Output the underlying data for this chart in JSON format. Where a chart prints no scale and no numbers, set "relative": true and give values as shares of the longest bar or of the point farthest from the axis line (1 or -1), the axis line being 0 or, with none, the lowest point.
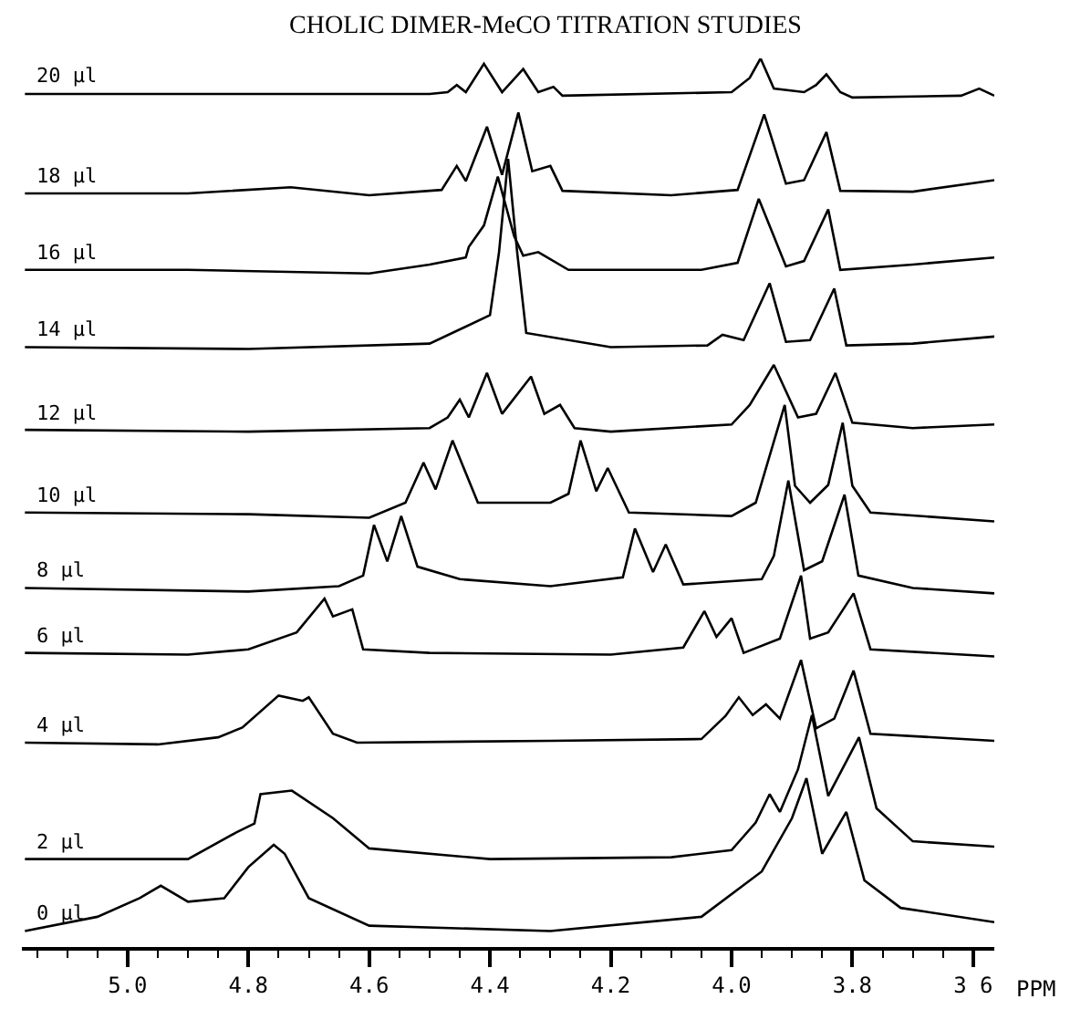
{
  "chart_data": {
    "type": "line",
    "title": "CHOLIC DIMER-MeCO TITRATION STUDIES",
    "xlabel": "PPM",
    "relative": true,
    "legend": false,
    "marker": "none",
    "line_style": "solid",
    "tick_labels": "x",
    "xlim": [
      5.175,
      3.565
    ],
    "xticks": [
      {
        "value": 5.15,
        "label": null
      },
      {
        "value": 5.1,
        "label": null
      },
      {
        "value": 5.05,
        "label": null
      },
      {
        "value": 5.0,
        "label": "5.0"
      },
      {
        "value": 4.95,
        "label": null
      },
      {
        "value": 4.9,
        "label": null
      },
      {
        "value": 4.85,
        "label": null
      },
      {
        "value": 4.8,
        "label": "4.8"
      },
      {
        "value": 4.75,
        "label": null
      },
      {
        "value": 4.7,
        "label": null
      },
      {
        "value": 4.65,
        "label": null
      },
      {
        "value": 4.6,
        "label": "4.6"
      },
      {
        "value": 4.55,
        "label": null
      },
      {
        "value": 4.5,
        "label": null
      },
      {
        "value": 4.45,
        "label": null
      },
      {
        "value": 4.4,
        "label": "4.4"
      },
      {
        "value": 4.35,
        "label": null
      },
      {
        "value": 4.3,
        "label": null
      },
      {
        "value": 4.25,
        "label": null
      },
      {
        "value": 4.2,
        "label": "4.2"
      },
      {
        "value": 4.15,
        "label": null
      },
      {
        "value": 4.1,
        "label": null
      },
      {
        "value": 4.05,
        "label": null
      },
      {
        "value": 4.0,
        "label": "4.0"
      },
      {
        "value": 3.95,
        "label": null
      },
      {
        "value": 3.9,
        "label": null
      },
      {
        "value": 3.85,
        "label": null
      },
      {
        "value": 3.8,
        "label": "3.8"
      },
      {
        "value": 3.75,
        "label": null
      },
      {
        "value": 3.7,
        "label": null
      },
      {
        "value": 3.65,
        "label": null
      },
      {
        "value": 3.6,
        "label": "3 6"
      }
    ],
    "series": [
      {
        "name": "20 µl",
        "color": "#000000",
        "x": [
          5.17,
          4.5,
          4.47,
          4.455,
          4.44,
          4.41,
          4.38,
          4.345,
          4.32,
          4.295,
          4.28,
          4.0,
          3.97,
          3.952,
          3.93,
          3.88,
          3.86,
          3.843,
          3.82,
          3.8,
          3.62,
          3.59,
          3.565
        ],
        "values": [
          0.96,
          0.96,
          0.962,
          0.97,
          0.962,
          0.994,
          0.962,
          0.988,
          0.962,
          0.968,
          0.958,
          0.962,
          0.978,
          1.0,
          0.966,
          0.962,
          0.97,
          0.982,
          0.962,
          0.956,
          0.958,
          0.966,
          0.958
        ]
      },
      {
        "name": "18 µl",
        "color": "#000000",
        "x": [
          5.17,
          4.9,
          4.73,
          4.6,
          4.48,
          4.455,
          4.44,
          4.405,
          4.38,
          4.353,
          4.33,
          4.3,
          4.28,
          4.1,
          3.99,
          3.946,
          3.91,
          3.88,
          3.843,
          3.82,
          3.7,
          3.565
        ],
        "values": [
          0.848,
          0.848,
          0.855,
          0.846,
          0.852,
          0.879,
          0.862,
          0.923,
          0.869,
          0.939,
          0.873,
          0.879,
          0.851,
          0.846,
          0.852,
          0.937,
          0.859,
          0.863,
          0.917,
          0.851,
          0.85,
          0.863
        ]
      },
      {
        "name": "16 µl",
        "color": "#000000",
        "x": [
          5.17,
          4.9,
          4.6,
          4.5,
          4.44,
          4.435,
          4.41,
          4.387,
          4.36,
          4.345,
          4.32,
          4.27,
          4.05,
          3.99,
          3.955,
          3.91,
          3.88,
          3.84,
          3.82,
          3.7,
          3.565
        ],
        "values": [
          0.762,
          0.762,
          0.758,
          0.768,
          0.776,
          0.788,
          0.812,
          0.867,
          0.8,
          0.778,
          0.782,
          0.762,
          0.762,
          0.77,
          0.842,
          0.766,
          0.772,
          0.83,
          0.762,
          0.768,
          0.776
        ]
      },
      {
        "name": "14 µl",
        "color": "#000000",
        "x": [
          5.17,
          4.8,
          4.5,
          4.4,
          4.385,
          4.37,
          4.355,
          4.34,
          4.2,
          4.04,
          4.015,
          3.98,
          3.937,
          3.91,
          3.87,
          3.83,
          3.81,
          3.7,
          3.565
        ],
        "values": [
          0.675,
          0.673,
          0.679,
          0.711,
          0.782,
          0.887,
          0.782,
          0.691,
          0.675,
          0.677,
          0.689,
          0.683,
          0.747,
          0.681,
          0.683,
          0.741,
          0.677,
          0.679,
          0.687
        ]
      },
      {
        "name": "12 µl",
        "color": "#000000",
        "x": [
          5.17,
          4.8,
          4.5,
          4.47,
          4.45,
          4.435,
          4.405,
          4.38,
          4.332,
          4.31,
          4.284,
          4.26,
          4.2,
          4.0,
          3.97,
          3.93,
          3.89,
          3.86,
          3.828,
          3.8,
          3.7,
          3.565
        ],
        "values": [
          0.582,
          0.58,
          0.584,
          0.596,
          0.616,
          0.596,
          0.646,
          0.6,
          0.642,
          0.6,
          0.61,
          0.584,
          0.58,
          0.588,
          0.61,
          0.655,
          0.596,
          0.6,
          0.646,
          0.59,
          0.584,
          0.588
        ]
      },
      {
        "name": "10 µl",
        "color": "#000000",
        "x": [
          5.17,
          4.8,
          4.6,
          4.54,
          4.51,
          4.49,
          4.462,
          4.42,
          4.3,
          4.27,
          4.25,
          4.224,
          4.205,
          4.17,
          4.0,
          3.96,
          3.912,
          3.895,
          3.87,
          3.84,
          3.816,
          3.8,
          3.77,
          3.565
        ],
        "values": [
          0.489,
          0.487,
          0.483,
          0.5,
          0.545,
          0.515,
          0.57,
          0.5,
          0.5,
          0.51,
          0.57,
          0.513,
          0.539,
          0.489,
          0.485,
          0.5,
          0.61,
          0.519,
          0.5,
          0.52,
          0.59,
          0.519,
          0.489,
          0.479
        ]
      },
      {
        "name": "8 µl",
        "color": "#000000",
        "x": [
          5.17,
          4.8,
          4.65,
          4.61,
          4.592,
          4.57,
          4.547,
          4.52,
          4.45,
          4.3,
          4.18,
          4.16,
          4.13,
          4.109,
          4.08,
          3.95,
          3.93,
          3.906,
          3.88,
          3.85,
          3.813,
          3.79,
          3.7,
          3.565
        ],
        "values": [
          0.404,
          0.4,
          0.406,
          0.418,
          0.475,
          0.434,
          0.485,
          0.428,
          0.414,
          0.406,
          0.416,
          0.471,
          0.422,
          0.453,
          0.408,
          0.414,
          0.44,
          0.525,
          0.424,
          0.434,
          0.509,
          0.418,
          0.404,
          0.398
        ]
      },
      {
        "name": "6 µl",
        "color": "#000000",
        "x": [
          5.17,
          4.9,
          4.8,
          4.72,
          4.674,
          4.66,
          4.628,
          4.61,
          4.5,
          4.2,
          4.08,
          4.045,
          4.025,
          4.0,
          3.98,
          3.92,
          3.885,
          3.87,
          3.84,
          3.798,
          3.77,
          3.565
        ],
        "values": [
          0.331,
          0.329,
          0.335,
          0.354,
          0.392,
          0.372,
          0.38,
          0.335,
          0.331,
          0.329,
          0.337,
          0.378,
          0.349,
          0.37,
          0.331,
          0.347,
          0.418,
          0.347,
          0.354,
          0.398,
          0.335,
          0.327
        ]
      },
      {
        "name": "4 µl",
        "color": "#000000",
        "x": [
          5.17,
          4.95,
          4.85,
          4.81,
          4.75,
          4.71,
          4.7,
          4.66,
          4.62,
          4.3,
          4.05,
          4.01,
          3.988,
          3.965,
          3.943,
          3.92,
          3.885,
          3.86,
          3.83,
          3.798,
          3.77,
          3.565
        ],
        "values": [
          0.23,
          0.228,
          0.236,
          0.247,
          0.283,
          0.277,
          0.281,
          0.24,
          0.23,
          0.232,
          0.234,
          0.26,
          0.281,
          0.261,
          0.273,
          0.257,
          0.323,
          0.246,
          0.257,
          0.311,
          0.24,
          0.232
        ]
      },
      {
        "name": "2 µl",
        "color": "#000000",
        "x": [
          5.17,
          4.9,
          4.82,
          4.79,
          4.78,
          4.728,
          4.66,
          4.6,
          4.4,
          4.1,
          4.0,
          3.96,
          3.937,
          3.92,
          3.89,
          3.867,
          3.84,
          3.789,
          3.76,
          3.7,
          3.565
        ],
        "values": [
          0.099,
          0.099,
          0.129,
          0.139,
          0.172,
          0.176,
          0.145,
          0.111,
          0.099,
          0.101,
          0.109,
          0.14,
          0.172,
          0.152,
          0.2,
          0.261,
          0.17,
          0.236,
          0.156,
          0.119,
          0.113
        ]
      },
      {
        "name": "0 µl",
        "color": "#000000",
        "x": [
          5.17,
          5.05,
          4.98,
          4.945,
          4.9,
          4.84,
          4.8,
          4.758,
          4.74,
          4.7,
          4.6,
          4.3,
          4.05,
          3.95,
          3.9,
          3.876,
          3.85,
          3.81,
          3.78,
          3.72,
          3.565
        ],
        "values": [
          0.018,
          0.034,
          0.055,
          0.069,
          0.051,
          0.055,
          0.09,
          0.115,
          0.105,
          0.055,
          0.024,
          0.018,
          0.034,
          0.085,
          0.145,
          0.19,
          0.105,
          0.152,
          0.075,
          0.044,
          0.028
        ]
      }
    ]
  }
}
